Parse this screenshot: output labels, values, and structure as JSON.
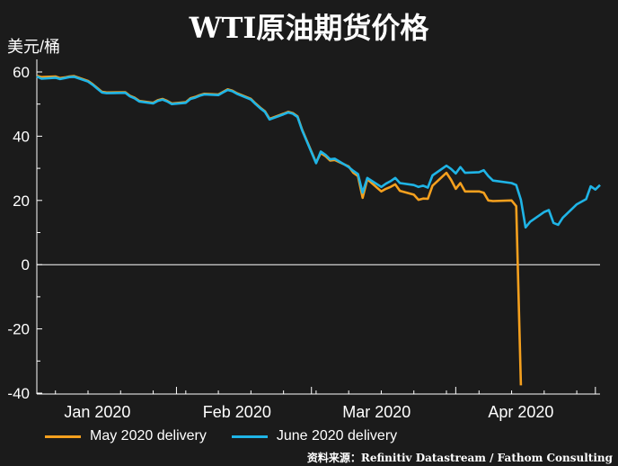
{
  "chart_data": {
    "type": "line",
    "title": "WTI原油期货价格",
    "ylabel": "美元/桶",
    "xlabel": "",
    "ylim": [
      -40,
      65
    ],
    "yticks": [
      60,
      40,
      20,
      0,
      -20,
      -40
    ],
    "ytick_labels": [
      "60",
      "40",
      "20",
      "0",
      "-20",
      "-40"
    ],
    "xticks": [
      {
        "label": "Jan 2020",
        "date": "2020-01-15"
      },
      {
        "label": "Feb 2020",
        "date": "2020-02-14"
      },
      {
        "label": "Mar 2020",
        "date": "2020-03-15"
      },
      {
        "label": "Apr 2020",
        "date": "2020-04-15"
      }
    ],
    "xrange": [
      "2020-01-02",
      "2020-05-01"
    ],
    "grid": false,
    "legend_position": "bottom-left",
    "series": [
      {
        "name": "May 2020 delivery",
        "color": "#f5a01e",
        "points": [
          [
            "2020-01-02",
            58.8
          ],
          [
            "2020-01-03",
            58.4
          ],
          [
            "2020-01-06",
            58.6
          ],
          [
            "2020-01-07",
            58.1
          ],
          [
            "2020-01-08",
            58.3
          ],
          [
            "2020-01-09",
            58.6
          ],
          [
            "2020-01-10",
            58.7
          ],
          [
            "2020-01-13",
            57.2
          ],
          [
            "2020-01-14",
            56.2
          ],
          [
            "2020-01-15",
            55.0
          ],
          [
            "2020-01-16",
            53.8
          ],
          [
            "2020-01-17",
            53.6
          ],
          [
            "2020-01-21",
            53.7
          ],
          [
            "2020-01-22",
            52.6
          ],
          [
            "2020-01-23",
            52.0
          ],
          [
            "2020-01-24",
            51.0
          ],
          [
            "2020-01-27",
            50.4
          ],
          [
            "2020-01-28",
            51.2
          ],
          [
            "2020-01-29",
            51.6
          ],
          [
            "2020-01-30",
            51.0
          ],
          [
            "2020-01-31",
            50.2
          ],
          [
            "2020-02-03",
            50.6
          ],
          [
            "2020-02-04",
            51.8
          ],
          [
            "2020-02-05",
            52.2
          ],
          [
            "2020-02-06",
            52.8
          ],
          [
            "2020-02-07",
            53.2
          ],
          [
            "2020-02-10",
            53.0
          ],
          [
            "2020-02-11",
            53.8
          ],
          [
            "2020-02-12",
            54.6
          ],
          [
            "2020-02-13",
            54.2
          ],
          [
            "2020-02-14",
            53.4
          ],
          [
            "2020-02-17",
            51.6
          ],
          [
            "2020-02-18",
            50.2
          ],
          [
            "2020-02-19",
            48.9
          ],
          [
            "2020-02-20",
            47.8
          ],
          [
            "2020-02-21",
            45.4
          ],
          [
            "2020-02-24",
            47.0
          ],
          [
            "2020-02-25",
            47.6
          ],
          [
            "2020-02-26",
            47.2
          ],
          [
            "2020-02-27",
            46.2
          ],
          [
            "2020-02-28",
            42.0
          ],
          [
            "2020-03-02",
            31.8
          ],
          [
            "2020-03-03",
            34.8
          ],
          [
            "2020-03-04",
            33.8
          ],
          [
            "2020-03-05",
            32.4
          ],
          [
            "2020-03-06",
            32.6
          ],
          [
            "2020-03-09",
            30.6
          ],
          [
            "2020-03-10",
            28.6
          ],
          [
            "2020-03-11",
            27.6
          ],
          [
            "2020-03-12",
            20.8
          ],
          [
            "2020-03-13",
            26.6
          ],
          [
            "2020-03-16",
            22.8
          ],
          [
            "2020-03-17",
            23.6
          ],
          [
            "2020-03-18",
            24.2
          ],
          [
            "2020-03-19",
            25.0
          ],
          [
            "2020-03-20",
            23.0
          ],
          [
            "2020-03-23",
            21.8
          ],
          [
            "2020-03-24",
            20.2
          ],
          [
            "2020-03-25",
            20.6
          ],
          [
            "2020-03-26",
            20.5
          ],
          [
            "2020-03-27",
            24.6
          ],
          [
            "2020-03-30",
            28.6
          ],
          [
            "2020-03-31",
            26.4
          ],
          [
            "2020-04-01",
            23.6
          ],
          [
            "2020-04-02",
            25.4
          ],
          [
            "2020-04-03",
            22.8
          ],
          [
            "2020-04-06",
            22.8
          ],
          [
            "2020-04-07",
            22.4
          ],
          [
            "2020-04-08",
            20.0
          ],
          [
            "2020-04-09",
            19.8
          ],
          [
            "2020-04-13",
            20.0
          ],
          [
            "2020-04-14",
            18.2
          ],
          [
            "2020-04-15",
            -37.6
          ]
        ]
      },
      {
        "name": "June 2020 delivery",
        "color": "#1fb4e6",
        "points": [
          [
            "2020-01-02",
            58.6
          ],
          [
            "2020-01-03",
            57.9
          ],
          [
            "2020-01-06",
            58.2
          ],
          [
            "2020-01-07",
            57.8
          ],
          [
            "2020-01-08",
            58.1
          ],
          [
            "2020-01-09",
            58.4
          ],
          [
            "2020-01-10",
            58.5
          ],
          [
            "2020-01-13",
            57.0
          ],
          [
            "2020-01-14",
            56.0
          ],
          [
            "2020-01-15",
            54.8
          ],
          [
            "2020-01-16",
            53.6
          ],
          [
            "2020-01-17",
            53.4
          ],
          [
            "2020-01-21",
            53.5
          ],
          [
            "2020-01-22",
            52.4
          ],
          [
            "2020-01-23",
            51.8
          ],
          [
            "2020-01-24",
            50.8
          ],
          [
            "2020-01-27",
            50.2
          ],
          [
            "2020-01-28",
            51.0
          ],
          [
            "2020-01-29",
            51.4
          ],
          [
            "2020-01-30",
            50.8
          ],
          [
            "2020-01-31",
            50.0
          ],
          [
            "2020-02-03",
            50.4
          ],
          [
            "2020-02-04",
            51.6
          ],
          [
            "2020-02-05",
            52.0
          ],
          [
            "2020-02-06",
            52.6
          ],
          [
            "2020-02-07",
            53.0
          ],
          [
            "2020-02-10",
            52.8
          ],
          [
            "2020-02-11",
            53.6
          ],
          [
            "2020-02-12",
            54.4
          ],
          [
            "2020-02-13",
            54.0
          ],
          [
            "2020-02-14",
            53.2
          ],
          [
            "2020-02-17",
            51.4
          ],
          [
            "2020-02-18",
            50.0
          ],
          [
            "2020-02-19",
            48.7
          ],
          [
            "2020-02-20",
            47.6
          ],
          [
            "2020-02-21",
            45.2
          ],
          [
            "2020-02-24",
            46.8
          ],
          [
            "2020-02-25",
            47.4
          ],
          [
            "2020-02-26",
            47.0
          ],
          [
            "2020-02-27",
            46.0
          ],
          [
            "2020-02-28",
            41.8
          ],
          [
            "2020-03-02",
            31.6
          ],
          [
            "2020-03-03",
            35.2
          ],
          [
            "2020-03-04",
            34.2
          ],
          [
            "2020-03-05",
            32.8
          ],
          [
            "2020-03-06",
            33.0
          ],
          [
            "2020-03-09",
            30.4
          ],
          [
            "2020-03-10",
            29.2
          ],
          [
            "2020-03-11",
            28.2
          ],
          [
            "2020-03-12",
            22.4
          ],
          [
            "2020-03-13",
            27.0
          ],
          [
            "2020-03-16",
            24.2
          ],
          [
            "2020-03-17",
            25.2
          ],
          [
            "2020-03-18",
            26.0
          ],
          [
            "2020-03-19",
            27.0
          ],
          [
            "2020-03-20",
            25.4
          ],
          [
            "2020-03-23",
            24.8
          ],
          [
            "2020-03-24",
            24.2
          ],
          [
            "2020-03-25",
            24.6
          ],
          [
            "2020-03-26",
            24.0
          ],
          [
            "2020-03-27",
            27.8
          ],
          [
            "2020-03-30",
            30.8
          ],
          [
            "2020-03-31",
            29.8
          ],
          [
            "2020-04-01",
            28.4
          ],
          [
            "2020-04-02",
            30.4
          ],
          [
            "2020-04-03",
            28.6
          ],
          [
            "2020-04-06",
            28.8
          ],
          [
            "2020-04-07",
            29.4
          ],
          [
            "2020-04-08",
            27.6
          ],
          [
            "2020-04-09",
            26.2
          ],
          [
            "2020-04-13",
            25.4
          ],
          [
            "2020-04-14",
            24.8
          ],
          [
            "2020-04-15",
            20.2
          ],
          [
            "2020-04-16",
            11.6
          ],
          [
            "2020-04-17",
            13.4
          ],
          [
            "2020-04-20",
            16.4
          ],
          [
            "2020-04-21",
            17.0
          ],
          [
            "2020-04-22",
            13.0
          ],
          [
            "2020-04-23",
            12.4
          ],
          [
            "2020-04-24",
            14.6
          ],
          [
            "2020-04-27",
            18.8
          ],
          [
            "2020-04-28",
            19.6
          ],
          [
            "2020-04-29",
            20.4
          ],
          [
            "2020-04-30",
            24.4
          ],
          [
            "2020-05-01",
            23.4
          ],
          [
            "2020-05-02",
            24.8
          ]
        ]
      }
    ],
    "source": "资料来源：Refinitiv Datastream / Fathom Consulting"
  }
}
